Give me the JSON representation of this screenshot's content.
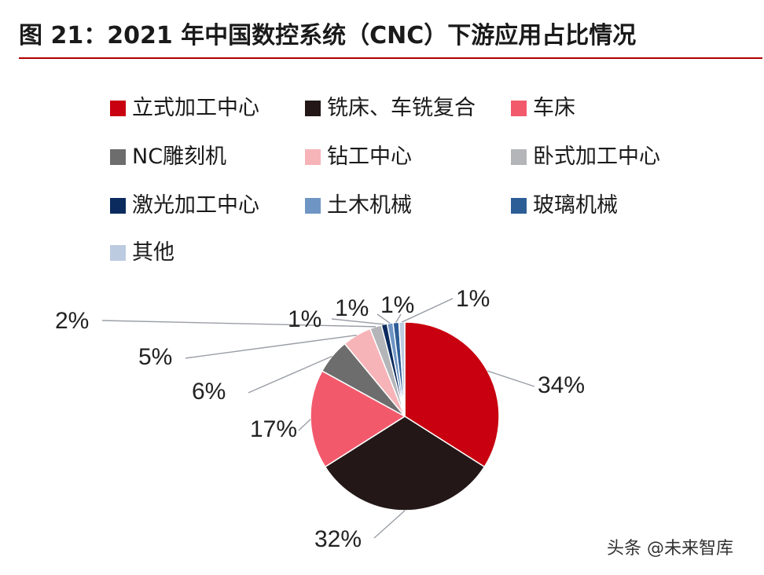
{
  "title": "图 21：2021 年中国数控系统（CNC）下游应用占比情况",
  "watermark": "头条 @未来智库",
  "chart_data": {
    "type": "pie",
    "categories": [
      "立式加工中心",
      "铣床、车铣复合",
      "车床",
      "NC雕刻机",
      "钻工中心",
      "卧式加工中心",
      "激光加工中心",
      "土木机械",
      "玻璃机械",
      "其他"
    ],
    "values": [
      34,
      32,
      17,
      6,
      5,
      2,
      1,
      1,
      1,
      1
    ],
    "labels": [
      "34%",
      "32%",
      "17%",
      "6%",
      "5%",
      "2%",
      "1%",
      "1%",
      "1%",
      "1%"
    ],
    "colors": [
      "#c8000f",
      "#231817",
      "#f25a6c",
      "#6d6d6d",
      "#f6b4b8",
      "#b3b5b9",
      "#0b2b5e",
      "#6f95c4",
      "#2d5d96",
      "#bccbe0"
    ],
    "legend_position": "top"
  }
}
